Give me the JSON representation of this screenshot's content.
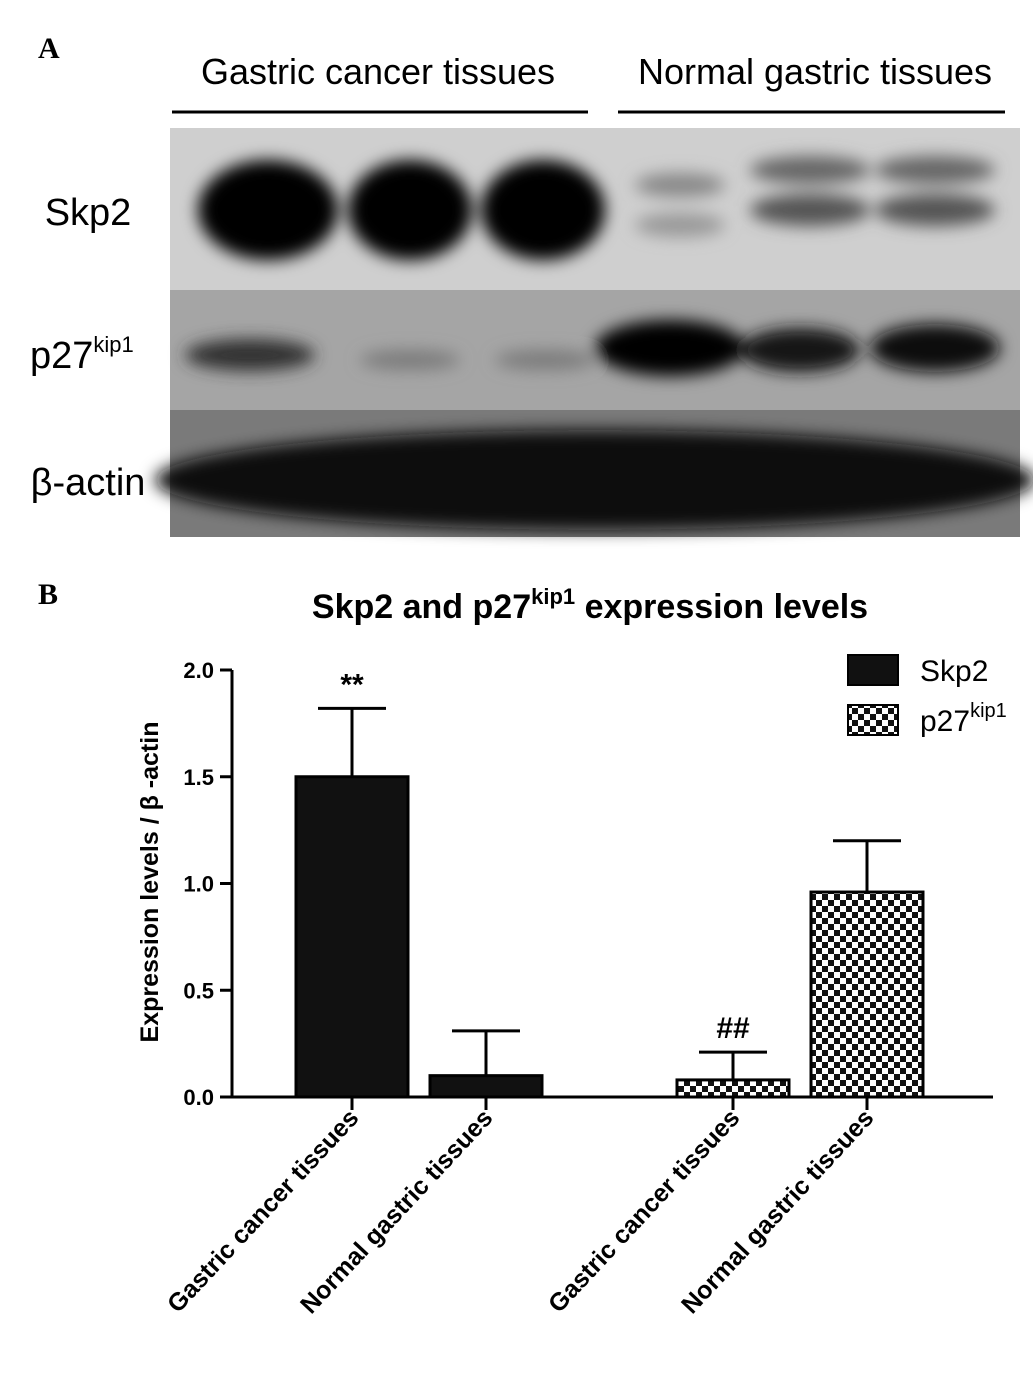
{
  "blot": {
    "panel_label": "A",
    "groups": [
      "Gastric cancer tissues",
      "Normal gastric tissues"
    ],
    "rows": [
      {
        "text": "Skp2"
      },
      {
        "text": "p27",
        "sup": "kip1"
      },
      {
        "text": "β-actin"
      }
    ]
  },
  "chart_data": {
    "type": "bar",
    "panel_label": "B",
    "title": [
      "Skp2 and p27",
      "kip1",
      " expression levels"
    ],
    "ylabel": "Expression levels / β -actin",
    "categories": [
      "Gastric cancer tissues",
      "Normal gastric tissues",
      "Gastric cancer tissues",
      "Normal gastric tissues"
    ],
    "series": [
      {
        "name": "Skp2",
        "color": "#111111",
        "values": [
          1.5,
          0.1,
          null,
          null
        ],
        "errors": [
          0.32,
          0.21,
          null,
          null
        ]
      },
      {
        "name": "p27",
        "name_sup": "kip1",
        "color": "#111111",
        "pattern": "checkerboard",
        "values": [
          null,
          null,
          0.08,
          0.96
        ],
        "errors": [
          null,
          null,
          0.13,
          0.24
        ]
      }
    ],
    "value_annotations": [
      "**",
      null,
      "##",
      null
    ],
    "ylim": [
      0,
      2
    ],
    "yticks": [
      {
        "value": 0,
        "label": "0.0"
      },
      {
        "value": 0.5,
        "label": "0.5"
      },
      {
        "value": 1,
        "label": "1.0"
      },
      {
        "value": 1.5,
        "label": "1.5"
      },
      {
        "value": 2,
        "label": "2.0"
      }
    ],
    "legend": "upper right",
    "grid": false
  }
}
